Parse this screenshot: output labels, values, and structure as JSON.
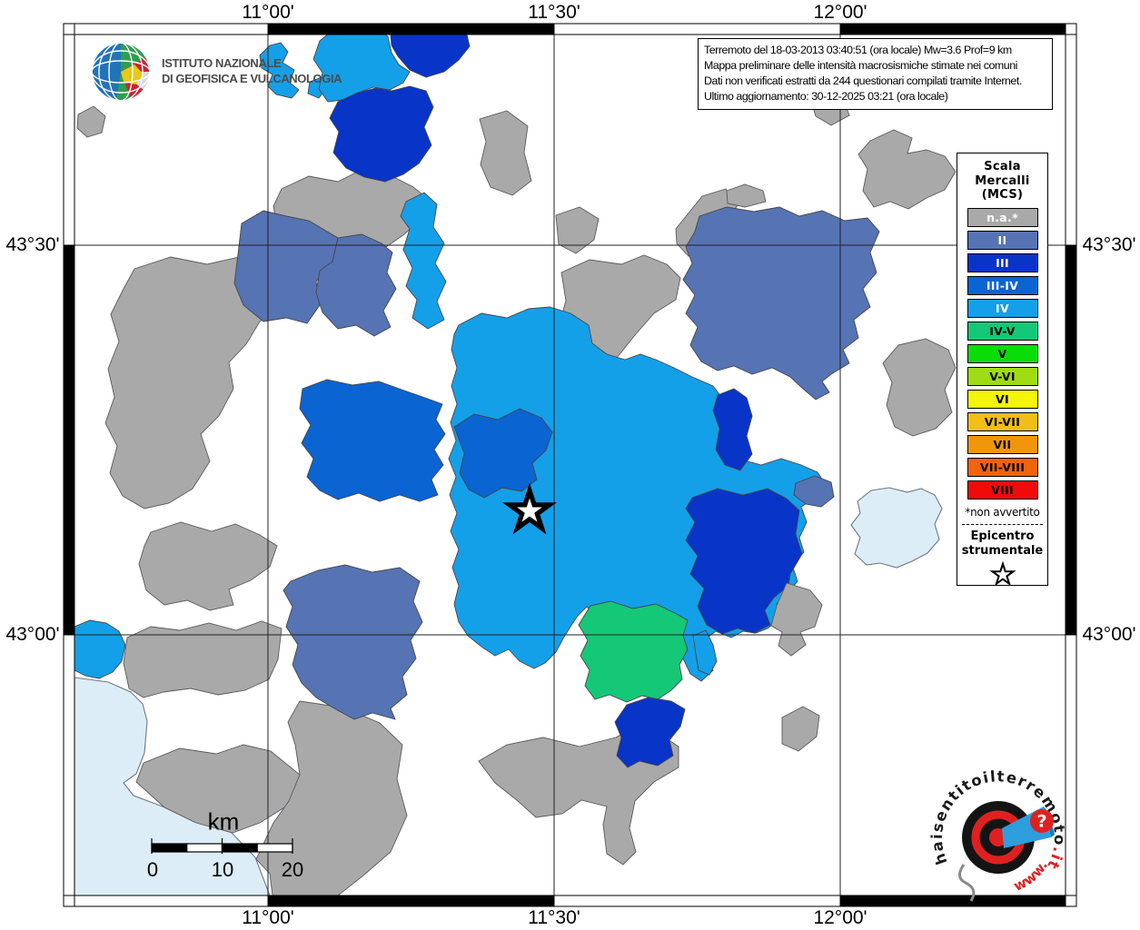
{
  "info_box": {
    "lines": [
      "Terremoto del 18-03-2013 03:40:51 (ora locale) Mw=3.6 Prof=9 km",
      "Mappa preliminare delle intensità macrosismiche stimate nei comuni",
      "Dati non verificati estratti da 244 questionari compilati tramite Internet.",
      "Ultimo aggiornamento: 30-12-2025 03:21 (ora locale)"
    ]
  },
  "axes": {
    "top": [
      "11°00'",
      "11°30'",
      "12°00'"
    ],
    "bottom": [
      "11°00'",
      "11°30'",
      "12°00'"
    ],
    "left": [
      "43°30'",
      "43°00'"
    ],
    "right": [
      "43°30'",
      "43°00'"
    ]
  },
  "legend": {
    "title_lines": [
      "Scala",
      "Mercalli",
      "(MCS)"
    ],
    "items": [
      {
        "label": "n.a.*",
        "color": "#A9A9A9",
        "text_color": "#FFFFFF"
      },
      {
        "label": "II",
        "color": "#5673B4",
        "text_color": "#FFFFFF"
      },
      {
        "label": "III",
        "color": "#0834C8",
        "text_color": "#FFFFFF"
      },
      {
        "label": "III-IV",
        "color": "#0A64D2",
        "text_color": "#FFFFFF"
      },
      {
        "label": "IV",
        "color": "#14A0E8",
        "text_color": "#FFFFFF"
      },
      {
        "label": "IV-V",
        "color": "#14C878",
        "text_color": "#000000"
      },
      {
        "label": "V",
        "color": "#0ADC0A",
        "text_color": "#000000"
      },
      {
        "label": "V-VI",
        "color": "#A0DC14",
        "text_color": "#000000"
      },
      {
        "label": "VI",
        "color": "#F5F50A",
        "text_color": "#000000"
      },
      {
        "label": "VI-VII",
        "color": "#F0BE14",
        "text_color": "#000000"
      },
      {
        "label": "VII",
        "color": "#F0960A",
        "text_color": "#000000"
      },
      {
        "label": "VII-VIII",
        "color": "#F0640A",
        "text_color": "#000000"
      },
      {
        "label": "VIII",
        "color": "#F00A0A",
        "text_color": "#000000"
      }
    ],
    "footnote": "*non avvertito",
    "epicenter_lines": [
      "Epicentro",
      "strumentale"
    ]
  },
  "scale_bar": {
    "unit": "km",
    "tick_labels": [
      "0",
      "10",
      "20"
    ]
  },
  "ingv_logo": {
    "line1": "ISTITUTO NAZIONALE",
    "line2": "DI GEOFISICA E VULCANOLOGIA"
  },
  "hsit_logo": {
    "arc_black": "haisentitoilterremoto",
    "arc_red": ".it",
    "www_text": "www.",
    "question_mark": "?"
  },
  "map": {
    "colors": {
      "na": "#A9A9A9",
      "ii": "#5673B4",
      "iii": "#0834C8",
      "iii_iv": "#0A64D2",
      "iv": "#14A0E8",
      "iv_v": "#14C878",
      "water": "#DCEDF8"
    }
  }
}
